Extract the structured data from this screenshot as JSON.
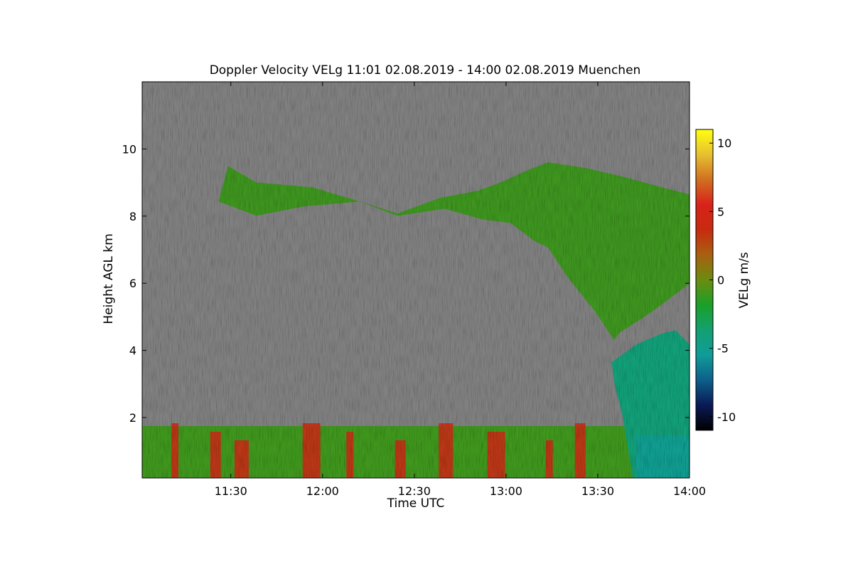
{
  "chart_data": {
    "type": "heatmap",
    "title": "Doppler Velocity VELg   11:01 02.08.2019 - 14:00 02.08.2019 Muenchen",
    "xlabel": "Time UTC",
    "ylabel": "Height AGL km",
    "x_range": [
      "11:01",
      "14:00"
    ],
    "y_range": [
      0.2,
      12.0
    ],
    "x_ticks": [
      "11:30",
      "12:00",
      "12:30",
      "13:00",
      "13:30",
      "14:00"
    ],
    "y_ticks": [
      2,
      4,
      6,
      8,
      10
    ],
    "colorbar": {
      "label": "VELg m/s",
      "range": [
        -11,
        11
      ],
      "ticks": [
        -10,
        -5,
        0,
        5,
        10
      ],
      "colormap": [
        "#000000",
        "#0a1a55",
        "#0d5f8a",
        "#109c9a",
        "#13a070",
        "#1aa028",
        "#6b8c10",
        "#a86010",
        "#c82a10",
        "#d8221a",
        "#d07020",
        "#e6c030",
        "#ffff10"
      ]
    },
    "background_color": "#808080",
    "features": [
      {
        "name": "upper cloud layer",
        "time_range": [
          "11:26",
          "14:00"
        ],
        "height_range_km": [
          4.3,
          9.6
        ],
        "typical_velocity_ms": -1.5
      },
      {
        "name": "boundary layer",
        "time_range": [
          "11:01",
          "13:40"
        ],
        "height_range_km": [
          0.2,
          2.0
        ],
        "typical_velocity_ms": -1.0
      },
      {
        "name": "precipitation",
        "time_range": [
          "13:38",
          "14:00"
        ],
        "height_range_km": [
          0.2,
          4.6
        ],
        "typical_velocity_ms": -4.0
      }
    ]
  }
}
